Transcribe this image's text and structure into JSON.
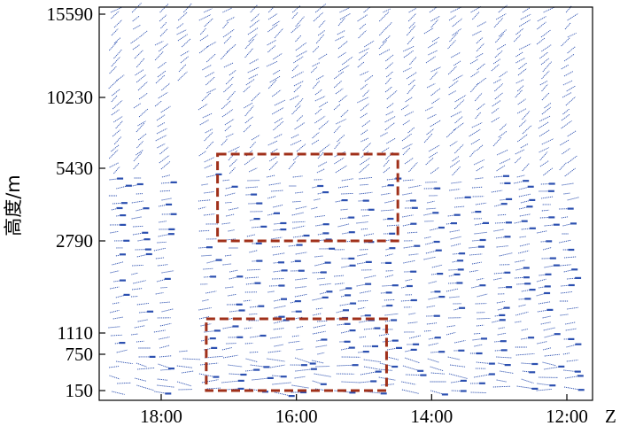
{
  "chart_data": {
    "type": "wind-barb-profile",
    "ylabel": "高度/m",
    "x_unit": "Z",
    "x_ticks": [
      "18:00",
      "16:00",
      "14:00",
      "12:00"
    ],
    "y_ticks": [
      "15590",
      "10230",
      "5430",
      "2790",
      "1110",
      "750",
      "150"
    ],
    "x_direction": "time decreasing to the right",
    "columns": [
      {
        "time": "18:40"
      },
      {
        "time": "18:20"
      },
      {
        "time": "18:00"
      },
      {
        "time": "17:40"
      },
      {
        "time": "17:20"
      },
      {
        "time": "17:00"
      },
      {
        "time": "16:40"
      },
      {
        "time": "16:20"
      },
      {
        "time": "16:00"
      },
      {
        "time": "15:40"
      },
      {
        "time": "15:20"
      },
      {
        "time": "15:00"
      },
      {
        "time": "14:40"
      },
      {
        "time": "14:20"
      },
      {
        "time": "14:00"
      },
      {
        "time": "13:40"
      },
      {
        "time": "13:20"
      },
      {
        "time": "13:00"
      },
      {
        "time": "12:40"
      },
      {
        "time": "12:20"
      },
      {
        "time": "12:00"
      }
    ],
    "highlight_boxes": [
      {
        "time_start": "17:10",
        "time_end": "14:30",
        "height_bottom": "2790",
        "height_top": "5430"
      },
      {
        "time_start": "17:20",
        "time_end": "14:40",
        "height_bottom": "150",
        "height_top": "1110"
      }
    ],
    "colors": {
      "barbs": "#2c50b0",
      "boxes": "#a0301a",
      "axis": "#000000"
    }
  }
}
